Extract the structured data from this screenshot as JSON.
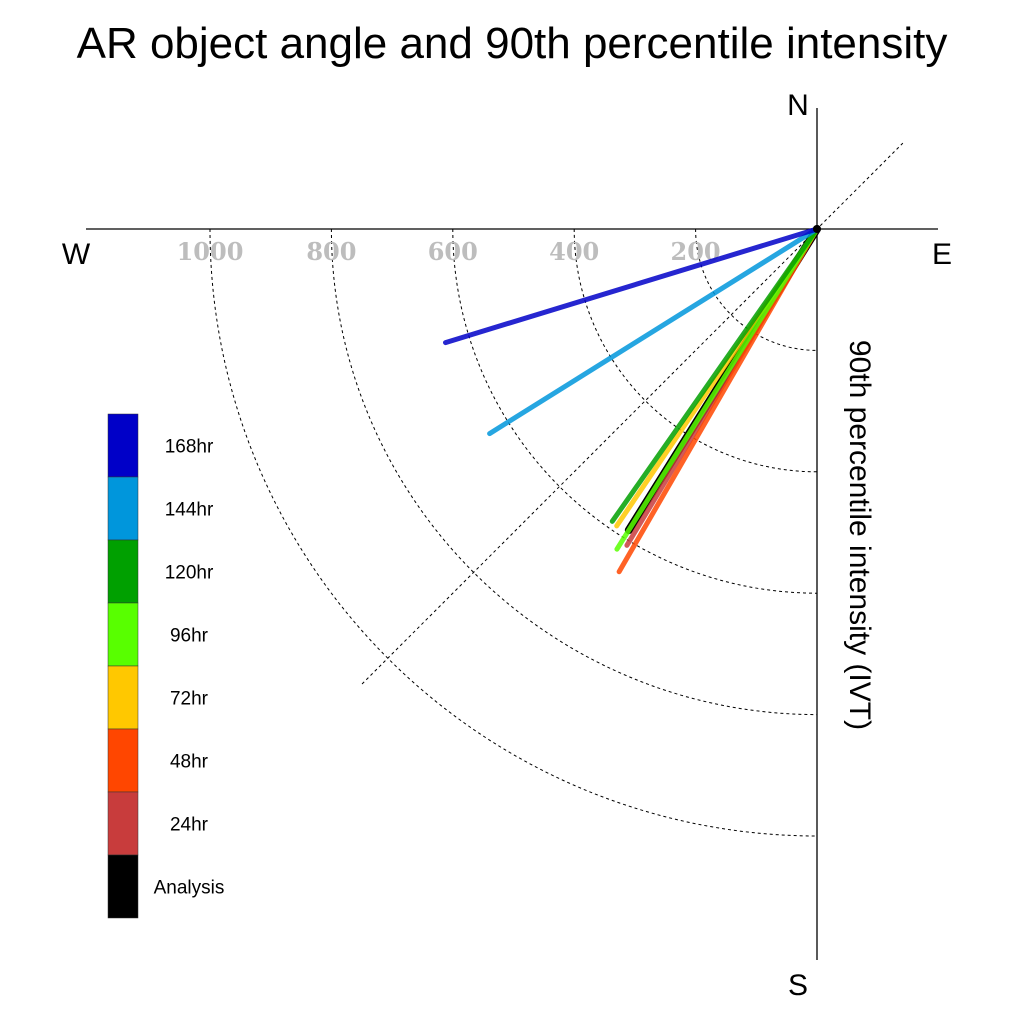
{
  "chart_data": {
    "type": "polar-vector",
    "title": "AR object angle and 90th percentile intensity",
    "ylabel": "90th percentile intensity (IVT)",
    "compass": {
      "north": "N",
      "south": "S",
      "east": "E",
      "west": "W"
    },
    "radial_ticks": [
      200,
      400,
      600,
      800,
      1000
    ],
    "radial_tick_labels": [
      "200",
      "400",
      "600",
      "800",
      "1000"
    ],
    "rlim": [
      0,
      1200
    ],
    "grid": true,
    "legend_position": "left",
    "series": [
      {
        "name": "168hr",
        "color": "#0000c8",
        "angle_deg": 253,
        "intensity": 640
      },
      {
        "name": "144hr",
        "color": "#0096dc",
        "angle_deg": 238,
        "intensity": 636
      },
      {
        "name": "120hr",
        "color": "#00a000",
        "angle_deg": 215,
        "intensity": 588
      },
      {
        "name": "96hr",
        "color": "#58ff00",
        "angle_deg": 212,
        "intensity": 622
      },
      {
        "name": "72hr",
        "color": "#ffc800",
        "angle_deg": 214,
        "intensity": 590
      },
      {
        "name": "48hr",
        "color": "#ff4600",
        "angle_deg": 210,
        "intensity": 652
      },
      {
        "name": "24hr",
        "color": "#c83c3c",
        "angle_deg": 211,
        "intensity": 608
      },
      {
        "name": "Analysis",
        "color": "#000000",
        "angle_deg": 212,
        "intensity": 585
      }
    ]
  }
}
